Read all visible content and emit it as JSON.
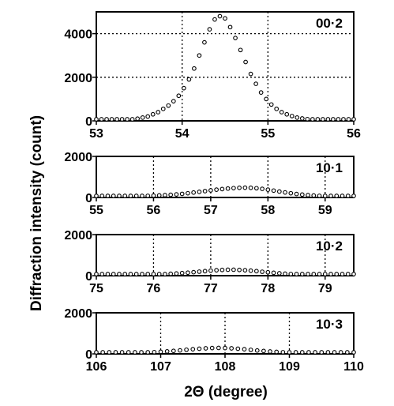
{
  "figure": {
    "ylabel": "Diffraction intensity (count)",
    "xlabel": "2Θ (degree)"
  },
  "chart_data": [
    {
      "type": "scatter",
      "annotation": "00·2",
      "xlim": [
        53,
        56
      ],
      "ylim": [
        0,
        5000
      ],
      "xticks": [
        53,
        54,
        55,
        56
      ],
      "yticks": [
        0,
        2000,
        4000
      ],
      "ytick_labels": [
        "0",
        "2000",
        "4000"
      ],
      "vgrid": [
        54,
        55
      ],
      "hgrid": [
        2000,
        4000
      ],
      "series": [
        {
          "x": [
            53.0,
            53.06,
            53.12,
            53.18,
            53.24,
            53.3,
            53.36,
            53.42,
            53.48,
            53.54,
            53.6,
            53.66,
            53.72,
            53.78,
            53.84,
            53.9,
            53.96,
            54.02,
            54.08,
            54.14,
            54.2,
            54.26,
            54.32,
            54.38,
            54.44,
            54.5,
            54.56,
            54.62,
            54.68,
            54.74,
            54.8,
            54.86,
            54.92,
            54.98,
            55.04,
            55.1,
            55.16,
            55.22,
            55.28,
            55.34,
            55.4,
            55.46,
            55.52,
            55.58,
            55.64,
            55.7,
            55.76,
            55.82,
            55.88,
            55.94,
            56.0
          ],
          "y": [
            0,
            0,
            0,
            0,
            10,
            20,
            40,
            60,
            100,
            150,
            200,
            300,
            400,
            550,
            700,
            900,
            1150,
            1500,
            1900,
            2400,
            3000,
            3600,
            4200,
            4650,
            4800,
            4700,
            4300,
            3800,
            3250,
            2700,
            2150,
            1700,
            1300,
            1000,
            750,
            550,
            400,
            300,
            220,
            150,
            110,
            80,
            60,
            40,
            30,
            20,
            15,
            10,
            5,
            5,
            5
          ]
        }
      ]
    },
    {
      "type": "scatter",
      "annotation": "10·1",
      "xlim": [
        55,
        59.5
      ],
      "ylim": [
        0,
        2000
      ],
      "xticks": [
        55,
        56,
        57,
        58,
        59
      ],
      "yticks": [
        0,
        2000
      ],
      "ytick_labels": [
        "0",
        "2000"
      ],
      "vgrid": [
        56,
        57,
        58,
        59
      ],
      "hgrid": [],
      "series": [
        {
          "x": [
            55.0,
            55.1,
            55.2,
            55.3,
            55.4,
            55.5,
            55.6,
            55.7,
            55.8,
            55.9,
            56.0,
            56.1,
            56.2,
            56.3,
            56.4,
            56.5,
            56.6,
            56.7,
            56.8,
            56.9,
            57.0,
            57.1,
            57.2,
            57.3,
            57.4,
            57.5,
            57.6,
            57.7,
            57.8,
            57.9,
            58.0,
            58.1,
            58.2,
            58.3,
            58.4,
            58.5,
            58.6,
            58.7,
            58.8,
            58.9,
            59.0,
            59.1,
            59.2,
            59.3,
            59.4,
            59.5
          ],
          "y": [
            50,
            50,
            55,
            55,
            60,
            60,
            65,
            70,
            75,
            80,
            90,
            100,
            115,
            130,
            150,
            175,
            205,
            240,
            275,
            310,
            345,
            380,
            410,
            435,
            455,
            470,
            475,
            470,
            450,
            420,
            380,
            335,
            290,
            245,
            205,
            170,
            140,
            115,
            95,
            80,
            70,
            60,
            55,
            50,
            50,
            50
          ]
        }
      ]
    },
    {
      "type": "scatter",
      "annotation": "10·2",
      "xlim": [
        75,
        79.5
      ],
      "ylim": [
        0,
        2000
      ],
      "xticks": [
        75,
        76,
        77,
        78,
        79
      ],
      "yticks": [
        0,
        2000
      ],
      "ytick_labels": [
        "0",
        "2000"
      ],
      "vgrid": [
        76,
        77,
        78,
        79
      ],
      "hgrid": [],
      "series": [
        {
          "x": [
            75.0,
            75.1,
            75.2,
            75.3,
            75.4,
            75.5,
            75.6,
            75.7,
            75.8,
            75.9,
            76.0,
            76.1,
            76.2,
            76.3,
            76.4,
            76.5,
            76.6,
            76.7,
            76.8,
            76.9,
            77.0,
            77.1,
            77.2,
            77.3,
            77.4,
            77.5,
            77.6,
            77.7,
            77.8,
            77.9,
            78.0,
            78.1,
            78.2,
            78.3,
            78.4,
            78.5,
            78.6,
            78.7,
            78.8,
            78.9,
            79.0,
            79.1,
            79.2,
            79.3,
            79.4,
            79.5
          ],
          "y": [
            20,
            20,
            20,
            25,
            25,
            30,
            30,
            35,
            40,
            45,
            55,
            65,
            75,
            90,
            105,
            125,
            145,
            170,
            195,
            220,
            245,
            265,
            280,
            290,
            290,
            280,
            265,
            245,
            220,
            190,
            165,
            140,
            115,
            95,
            80,
            65,
            55,
            45,
            40,
            35,
            30,
            30,
            25,
            25,
            20,
            20
          ]
        }
      ]
    },
    {
      "type": "scatter",
      "annotation": "10·3",
      "xlim": [
        106,
        110
      ],
      "ylim": [
        0,
        2000
      ],
      "xticks": [
        106,
        107,
        108,
        109,
        110
      ],
      "yticks": [
        0,
        2000
      ],
      "ytick_labels": [
        "0",
        "2000"
      ],
      "vgrid": [
        107,
        108,
        109
      ],
      "hgrid": [],
      "series": [
        {
          "x": [
            106.0,
            106.1,
            106.2,
            106.3,
            106.4,
            106.5,
            106.6,
            106.7,
            106.8,
            106.9,
            107.0,
            107.1,
            107.2,
            107.3,
            107.4,
            107.5,
            107.6,
            107.7,
            107.8,
            107.9,
            108.0,
            108.1,
            108.2,
            108.3,
            108.4,
            108.5,
            108.6,
            108.7,
            108.8,
            108.9,
            109.0,
            109.1,
            109.2,
            109.3,
            109.4,
            109.5,
            109.6,
            109.7,
            109.8,
            109.9,
            110.0
          ],
          "y": [
            30,
            30,
            35,
            35,
            40,
            45,
            50,
            60,
            70,
            85,
            100,
            120,
            145,
            170,
            200,
            225,
            250,
            270,
            285,
            290,
            285,
            270,
            250,
            225,
            195,
            165,
            140,
            115,
            95,
            80,
            65,
            55,
            45,
            40,
            35,
            30,
            30,
            30,
            30,
            30,
            30
          ]
        }
      ]
    }
  ]
}
